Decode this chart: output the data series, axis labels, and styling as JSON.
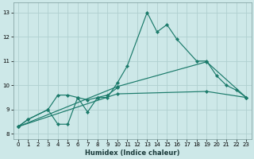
{
  "xlabel": "Humidex (Indice chaleur)",
  "background_color": "#cde8e8",
  "grid_color": "#b0d0d0",
  "line_color": "#1a7a6a",
  "xlim": [
    -0.5,
    23.5
  ],
  "ylim": [
    7.8,
    13.4
  ],
  "xtick_labels": [
    "0",
    "1",
    "2",
    "3",
    "4",
    "5",
    "6",
    "7",
    "8",
    "9",
    "10",
    "11",
    "12",
    "13",
    "14",
    "15",
    "16",
    "17",
    "18",
    "19",
    "20",
    "21",
    "22",
    "23"
  ],
  "yticks": [
    8,
    9,
    10,
    11,
    12,
    13
  ],
  "series1_x": [
    0,
    1,
    3,
    4,
    5,
    6,
    7,
    8,
    9,
    10,
    11,
    13,
    14,
    15,
    16,
    18,
    19,
    20,
    21,
    22,
    23
  ],
  "series1_y": [
    8.3,
    8.6,
    9.0,
    8.4,
    8.4,
    9.5,
    8.9,
    9.5,
    9.5,
    10.1,
    10.8,
    13.0,
    12.2,
    12.5,
    11.9,
    11.0,
    11.0,
    10.4,
    10.0,
    9.8,
    9.5
  ],
  "series2_x": [
    0,
    1,
    3,
    4,
    5,
    6,
    7,
    8,
    9,
    10
  ],
  "series2_y": [
    8.3,
    8.6,
    9.0,
    9.6,
    9.6,
    9.5,
    9.4,
    9.5,
    9.6,
    9.9
  ],
  "series3_x": [
    0,
    10,
    19,
    23
  ],
  "series3_y": [
    8.3,
    9.95,
    10.97,
    9.5
  ],
  "series4_x": [
    0,
    10,
    19,
    23
  ],
  "series4_y": [
    8.3,
    9.65,
    9.75,
    9.5
  ]
}
